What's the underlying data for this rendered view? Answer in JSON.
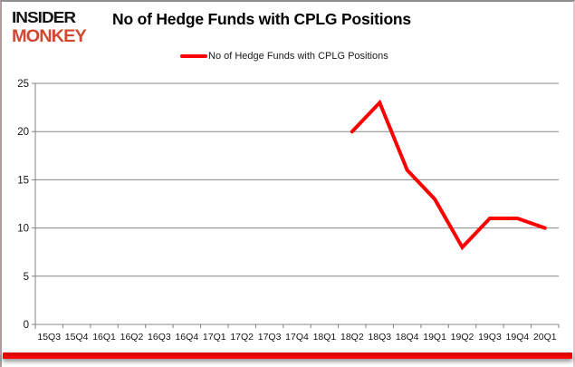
{
  "branding": {
    "logo_line1": "INSIDER",
    "logo_line2": "MONKEY",
    "logo_color_primary": "#151515",
    "logo_color_secondary": "#cf4a30"
  },
  "header": {
    "title": "No of Hedge Funds with CPLG Positions"
  },
  "legend": {
    "label": "No of Hedge Funds with CPLG Positions",
    "marker_color": "#ff0000"
  },
  "chart_data": {
    "type": "line",
    "title": "No of Hedge Funds with CPLG Positions",
    "categories": [
      "15Q3",
      "15Q4",
      "16Q1",
      "16Q2",
      "16Q3",
      "16Q4",
      "17Q1",
      "17Q2",
      "17Q3",
      "17Q4",
      "18Q1",
      "18Q2",
      "18Q3",
      "18Q4",
      "19Q1",
      "19Q2",
      "19Q3",
      "19Q4",
      "20Q1"
    ],
    "series": [
      {
        "name": "No of Hedge Funds with CPLG Positions",
        "color": "#ff0000",
        "values": [
          null,
          null,
          null,
          null,
          null,
          null,
          null,
          null,
          null,
          null,
          null,
          20,
          23,
          16,
          13,
          8,
          11,
          11,
          10
        ]
      }
    ],
    "xlabel": "",
    "ylabel": "",
    "ylim": [
      0,
      25
    ],
    "ytick_step": 5,
    "grid": "horizontal",
    "legend_position": "top"
  },
  "colors": {
    "grid": "#888888",
    "axis": "#808080",
    "tick_label": "#151515",
    "accent_bar_top": "#d40000",
    "accent_bar_bottom": "#ff0a0a",
    "background": "#ffffff"
  }
}
